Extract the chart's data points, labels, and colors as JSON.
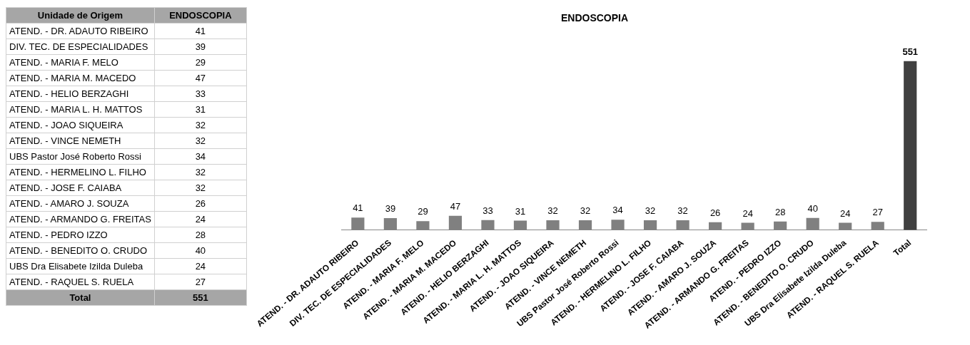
{
  "chart_data": {
    "type": "bar",
    "title": "ENDOSCOPIA",
    "categories": [
      "ATEND. - DR. ADAUTO RIBEIRO",
      "DIV. TEC. DE ESPECIALIDADES",
      "ATEND. - MARIA F. MELO",
      "ATEND. - MARIA M. MACEDO",
      "ATEND. - HELIO BERZAGHI",
      "ATEND. - MARIA L. H. MATTOS",
      "ATEND. - JOAO SIQUEIRA",
      "ATEND. - VINCE NEMETH",
      "UBS Pastor José Roberto Rossi",
      "ATEND. - HERMELINO L. FILHO",
      "ATEND. - JOSE F. CAIABA",
      "ATEND. - AMARO J. SOUZA",
      "ATEND. - ARMANDO G. FREITAS",
      "ATEND. - PEDRO IZZO",
      "ATEND. - BENEDITO O. CRUDO",
      "UBS Dra Elisabete Izilda Duleba",
      "ATEND. - RAQUEL S. RUELA",
      "Total"
    ],
    "values": [
      41,
      39,
      29,
      47,
      33,
      31,
      32,
      32,
      34,
      32,
      32,
      26,
      24,
      28,
      40,
      24,
      27,
      551
    ],
    "colors": [
      "#808080",
      "#808080",
      "#808080",
      "#808080",
      "#808080",
      "#808080",
      "#808080",
      "#808080",
      "#808080",
      "#808080",
      "#808080",
      "#808080",
      "#808080",
      "#808080",
      "#808080",
      "#808080",
      "#808080",
      "#404040"
    ],
    "value_labels": [
      "41",
      "39",
      "29",
      "47",
      "33",
      "31",
      "32",
      "32",
      "34",
      "32",
      "32",
      "26",
      "24",
      "28",
      "40",
      "24",
      "27",
      "551"
    ],
    "annotations": [
      "Unidade de Origem",
      "ENDOSCOPIA"
    ]
  }
}
